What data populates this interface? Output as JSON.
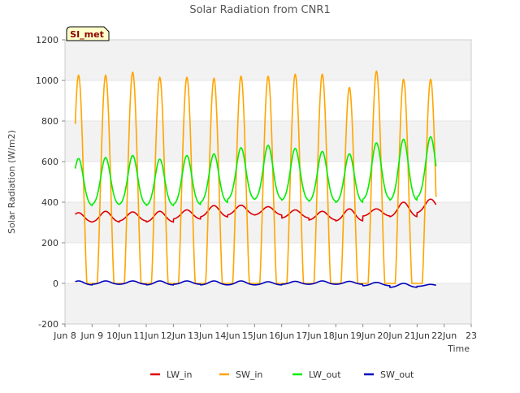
{
  "chart_data": {
    "type": "line",
    "title": "Solar Radiation from CNR1",
    "xlabel": "Time",
    "ylabel": "Solar Radiation (W/m2)",
    "annotation_box": "SI_met",
    "xlim": [
      8,
      23
    ],
    "ylim": [
      -200,
      1200
    ],
    "x_ticks": [
      {
        "value": 8,
        "label": "Jun 8"
      },
      {
        "value": 9,
        "label": "Jun 9"
      },
      {
        "value": 10,
        "label": "10Jun"
      },
      {
        "value": 11,
        "label": "11Jun"
      },
      {
        "value": 12,
        "label": "12Jun"
      },
      {
        "value": 13,
        "label": "13Jun"
      },
      {
        "value": 14,
        "label": "14Jun"
      },
      {
        "value": 15,
        "label": "15Jun"
      },
      {
        "value": 16,
        "label": "16Jun"
      },
      {
        "value": 17,
        "label": "17Jun"
      },
      {
        "value": 18,
        "label": "18Jun"
      },
      {
        "value": 19,
        "label": "19Jun"
      },
      {
        "value": 20,
        "label": "20Jun"
      },
      {
        "value": 21,
        "label": "21Jun"
      },
      {
        "value": 22,
        "label": "22Jun"
      },
      {
        "value": 23,
        "label": "23"
      }
    ],
    "y_ticks": [
      {
        "value": -200,
        "label": "-200"
      },
      {
        "value": 0,
        "label": "0"
      },
      {
        "value": 200,
        "label": "200"
      },
      {
        "value": 400,
        "label": "400"
      },
      {
        "value": 600,
        "label": "600"
      },
      {
        "value": 800,
        "label": "800"
      },
      {
        "value": 1000,
        "label": "1000"
      },
      {
        "value": 1200,
        "label": "1200"
      }
    ],
    "grid": "horizontal shaded bands",
    "legend_position": "bottom",
    "days": [
      8.5,
      9.5,
      10.5,
      11.5,
      12.5,
      13.5,
      14.5,
      15.5,
      16.5,
      17.5,
      18.5,
      19.5,
      20.5,
      21.5
    ],
    "series": [
      {
        "name": "LW_in",
        "color": "#dd0000",
        "night_values": [
          300,
          300,
          305,
          300,
          315,
          325,
          335,
          335,
          320,
          310,
          305,
          330,
          325,
          345
        ],
        "peak_values": [
          348,
          355,
          352,
          355,
          362,
          383,
          385,
          378,
          362,
          355,
          367,
          367,
          400,
          415
        ]
      },
      {
        "name": "SW_in",
        "color": "#ffa500",
        "night_values": [
          0,
          0,
          0,
          0,
          0,
          0,
          0,
          0,
          0,
          0,
          0,
          0,
          0,
          0
        ],
        "peak_values": [
          1025,
          1025,
          1040,
          1015,
          1015,
          1010,
          1020,
          1020,
          1030,
          1030,
          965,
          1045,
          1005,
          1005
        ]
      },
      {
        "name": "LW_out",
        "color": "#00ee00",
        "night_values": [
          380,
          385,
          385,
          380,
          385,
          395,
          410,
          410,
          405,
          400,
          395,
          410,
          405,
          420
        ],
        "peak_values": [
          615,
          620,
          630,
          612,
          630,
          638,
          668,
          680,
          665,
          650,
          638,
          692,
          710,
          722
        ]
      },
      {
        "name": "SW_out",
        "color": "#0000bb",
        "night_values": [
          -8,
          -5,
          -5,
          -8,
          -5,
          -8,
          -8,
          -8,
          -5,
          -5,
          -5,
          -12,
          -20,
          -15
        ],
        "peak_values": [
          12,
          12,
          12,
          12,
          12,
          12,
          12,
          8,
          10,
          12,
          10,
          5,
          0,
          -5
        ]
      }
    ]
  }
}
